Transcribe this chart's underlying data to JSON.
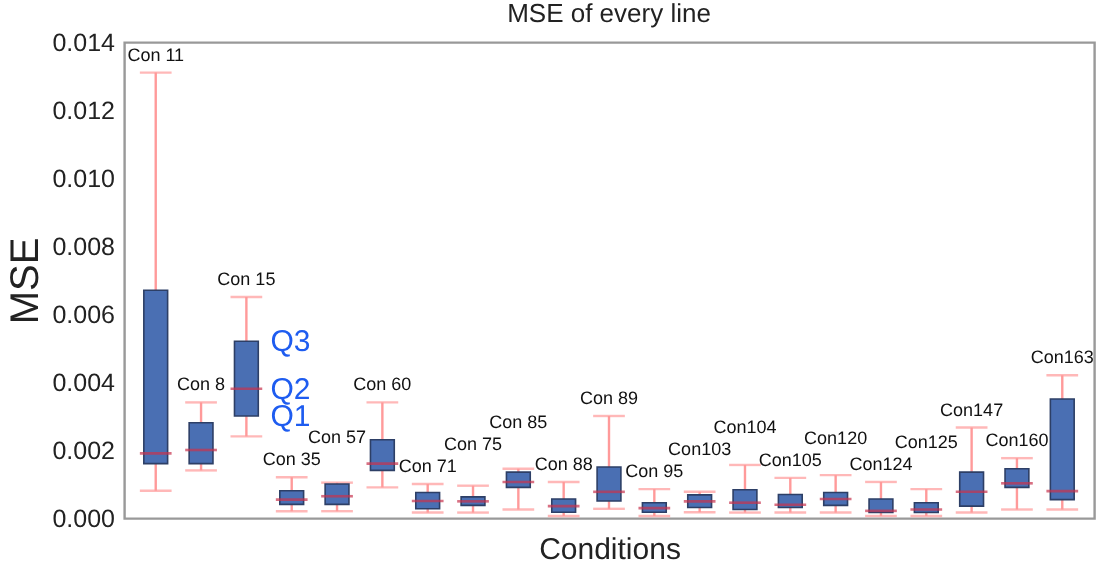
{
  "chart_data": {
    "type": "box",
    "title": "MSE of every line",
    "xlabel": "Conditions",
    "ylabel": "MSE",
    "tick_labels": "y",
    "grid": false,
    "color": "#4a6fb3",
    "categories": [
      "Con 11",
      "Con 8",
      "Con 15",
      "Con 35",
      "Con 57",
      "Con 60",
      "Con 71",
      "Con 75",
      "Con 85",
      "Con 88",
      "Con 89",
      "Con 95",
      "Con103",
      "Con104",
      "Con105",
      "Con120",
      "Con124",
      "Con125",
      "Con147",
      "Con160",
      "Con163"
    ],
    "boxes": [
      {
        "low": 0.0008,
        "q1": 0.0016,
        "median": 0.0019,
        "q3": 0.0067,
        "high": 0.0131
      },
      {
        "low": 0.0014,
        "q1": 0.0016,
        "median": 0.002,
        "q3": 0.0028,
        "high": 0.0034
      },
      {
        "low": 0.0024,
        "q1": 0.003,
        "median": 0.0038,
        "q3": 0.0052,
        "high": 0.0065
      },
      {
        "low": 0.0002,
        "q1": 0.0004,
        "median": 0.00054,
        "q3": 0.0008,
        "high": 0.0012
      },
      {
        "low": 0.0002,
        "q1": 0.0004,
        "median": 0.00064,
        "q3": 0.001,
        "high": 0.00104
      },
      {
        "low": 0.0009,
        "q1": 0.0014,
        "median": 0.0016,
        "q3": 0.0023,
        "high": 0.0034
      },
      {
        "low": 0.00016,
        "q1": 0.00027,
        "median": 0.0005,
        "q3": 0.00075,
        "high": 0.001
      },
      {
        "low": 0.00016,
        "q1": 0.00037,
        "median": 0.00049,
        "q3": 0.00062,
        "high": 0.00095
      },
      {
        "low": 0.00025,
        "q1": 0.0009,
        "median": 0.00106,
        "q3": 0.00135,
        "high": 0.00145
      },
      {
        "low": 6e-05,
        "q1": 0.00017,
        "median": 0.00035,
        "q3": 0.00056,
        "high": 0.00106
      },
      {
        "low": 0.00027,
        "q1": 0.0005,
        "median": 0.00077,
        "q3": 0.0015,
        "high": 0.003
      },
      {
        "low": 6e-05,
        "q1": 0.00017,
        "median": 0.00029,
        "q3": 0.00045,
        "high": 0.00085
      },
      {
        "low": 0.00017,
        "q1": 0.00031,
        "median": 0.00049,
        "q3": 0.00068,
        "high": 0.00077
      },
      {
        "low": 0.00016,
        "q1": 0.00025,
        "median": 0.00045,
        "q3": 0.00083,
        "high": 0.00156
      },
      {
        "low": 0.00016,
        "q1": 0.00031,
        "median": 0.00039,
        "q3": 0.00069,
        "high": 0.00118
      },
      {
        "low": 0.00016,
        "q1": 0.00037,
        "median": 0.00056,
        "q3": 0.00075,
        "high": 0.00126
      },
      {
        "low": 6e-05,
        "q1": 0.00016,
        "median": 0.00021,
        "q3": 0.00056,
        "high": 0.00106
      },
      {
        "low": 6e-05,
        "q1": 0.00016,
        "median": 0.00025,
        "q3": 0.00045,
        "high": 0.00085
      },
      {
        "low": 0.00016,
        "q1": 0.00035,
        "median": 0.00077,
        "q3": 0.00135,
        "high": 0.00266
      },
      {
        "low": 0.00025,
        "q1": 0.0009,
        "median": 0.00102,
        "q3": 0.00145,
        "high": 0.00176
      },
      {
        "low": 0.00025,
        "q1": 0.00054,
        "median": 0.00079,
        "q3": 0.0035,
        "high": 0.0042
      }
    ],
    "ylim": [
      0,
      0.014
    ],
    "yticks": [
      {
        "value": 0,
        "label": "0.000"
      },
      {
        "value": 0.002,
        "label": "0.002"
      },
      {
        "value": 0.004,
        "label": "0.004"
      },
      {
        "value": 0.006,
        "label": "0.006"
      },
      {
        "value": 0.008,
        "label": "0.008"
      },
      {
        "value": 0.01,
        "label": "0.010"
      },
      {
        "value": 0.012,
        "label": "0.012"
      },
      {
        "value": 0.014,
        "label": "0.014"
      }
    ],
    "annotations": [
      {
        "text": "Q3",
        "x": "Con 15",
        "y": 0.0052
      },
      {
        "text": "Q2",
        "x": "Con 15",
        "y": 0.0038
      },
      {
        "text": "Q1",
        "x": "Con 15",
        "y": 0.003
      }
    ]
  }
}
